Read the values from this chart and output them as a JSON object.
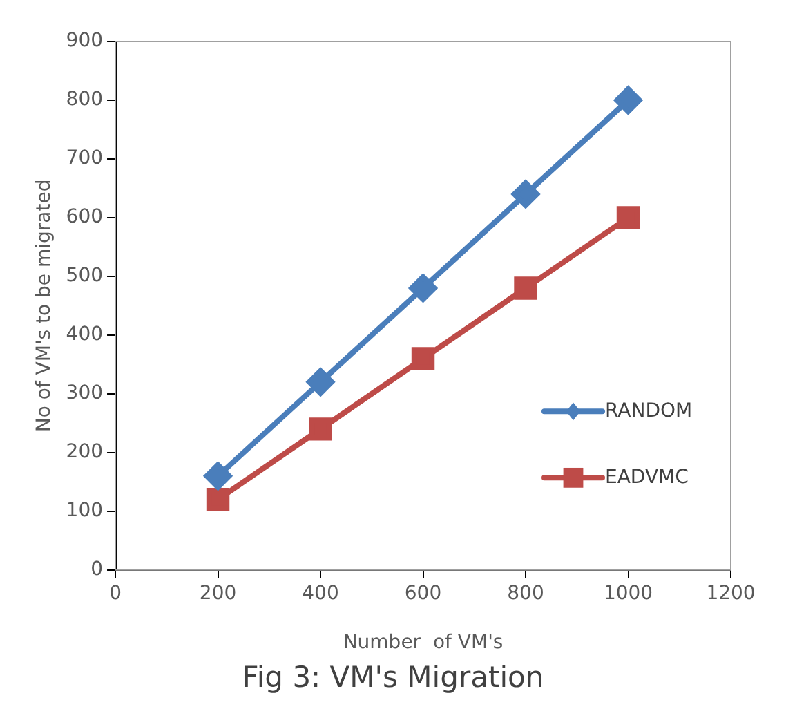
{
  "chart_data": {
    "type": "line",
    "xlabel": "Number  of VM's",
    "ylabel": "No of VM's to be migrated",
    "annotations": [
      "Fig 3: VM's Migration"
    ],
    "x": [
      200,
      400,
      600,
      800,
      1000
    ],
    "series": [
      {
        "name": "RANDOM",
        "color": "#4a7ebb",
        "marker": "diamond",
        "values": [
          160,
          320,
          480,
          640,
          800
        ]
      },
      {
        "name": "EADVMC",
        "color": "#be4b48",
        "marker": "square",
        "values": [
          120,
          240,
          360,
          480,
          600
        ]
      }
    ],
    "xlim": [
      0,
      1200
    ],
    "xticks": [
      0,
      200,
      400,
      600,
      800,
      1000,
      1200
    ],
    "ylim": [
      0,
      900
    ],
    "yticks": [
      0,
      100,
      200,
      300,
      400,
      500,
      600,
      700,
      800,
      900
    ],
    "grid": false,
    "legend": "right",
    "line_style": "solid"
  }
}
